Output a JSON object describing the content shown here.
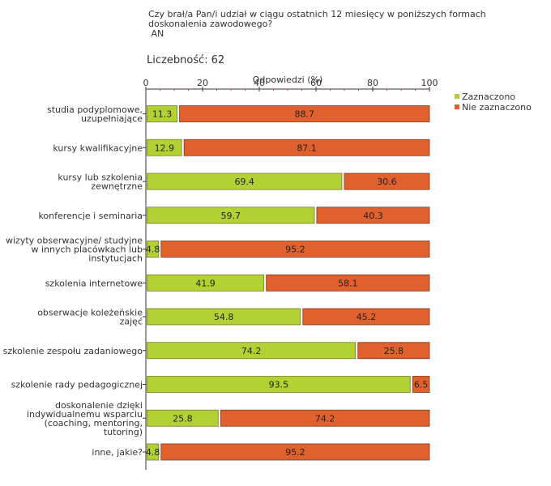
{
  "question": {
    "line1": "Czy brał/a Pan/i udział w ciągu ostatnich 12 miesięcy w poniższych formach",
    "line2": "doskonalenia zawodowego?",
    "line3": " AN"
  },
  "count": {
    "label": "Liczebność:",
    "value": "62"
  },
  "chart_data": {
    "type": "bar",
    "orientation": "horizontal",
    "stacked": true,
    "axis_title": "Odpowiedzi (%)",
    "xlim": [
      0,
      100
    ],
    "ticks": [
      0,
      20,
      40,
      60,
      80,
      100
    ],
    "tick_labels": [
      "0",
      "20",
      "40",
      "60",
      "80",
      "100"
    ],
    "categories": [
      [
        "studia podyplomowe,",
        "uzupełniające"
      ],
      [
        "kursy kwalifikacyjne"
      ],
      [
        "kursy lub szkolenia",
        "zewnętrzne"
      ],
      [
        "konferencje i seminaria"
      ],
      [
        "wizyty obserwacyjne/ studyjne",
        "w innych placówkach lub",
        "instytucjach"
      ],
      [
        "szkolenia internetowe"
      ],
      [
        "obserwacje koleżeńskie",
        "zajęć"
      ],
      [
        "szkolenie zespołu zadaniowego"
      ],
      [
        "szkolenie rady pedagogicznej"
      ],
      [
        "doskonalenie dzięki",
        "indywidualnemu wsparciu",
        "(coaching, mentoring,",
        "tutoring)"
      ],
      [
        "inne, jakie?"
      ]
    ],
    "series": [
      {
        "name": "Zaznaczono",
        "color": "#b2d234",
        "values": [
          11.3,
          12.9,
          69.4,
          59.7,
          4.8,
          41.9,
          54.8,
          74.2,
          93.5,
          25.8,
          4.8
        ],
        "labels": [
          "11.3",
          "12.9",
          "69.4",
          "59.7",
          "4.8",
          "41.9",
          "54.8",
          "74.2",
          "93.5",
          "25.8",
          "4.8"
        ]
      },
      {
        "name": "Nie zaznaczono",
        "color": "#e0612d",
        "values": [
          88.7,
          87.1,
          30.6,
          40.3,
          95.2,
          58.1,
          45.2,
          25.8,
          6.5,
          74.2,
          95.2
        ],
        "labels": [
          "88.7",
          "87.1",
          "30.6",
          "40.3",
          "95.2",
          "58.1",
          "45.2",
          "25.8",
          "6.5",
          "74.2",
          "95.2"
        ]
      }
    ],
    "legend_position": "top-right"
  }
}
